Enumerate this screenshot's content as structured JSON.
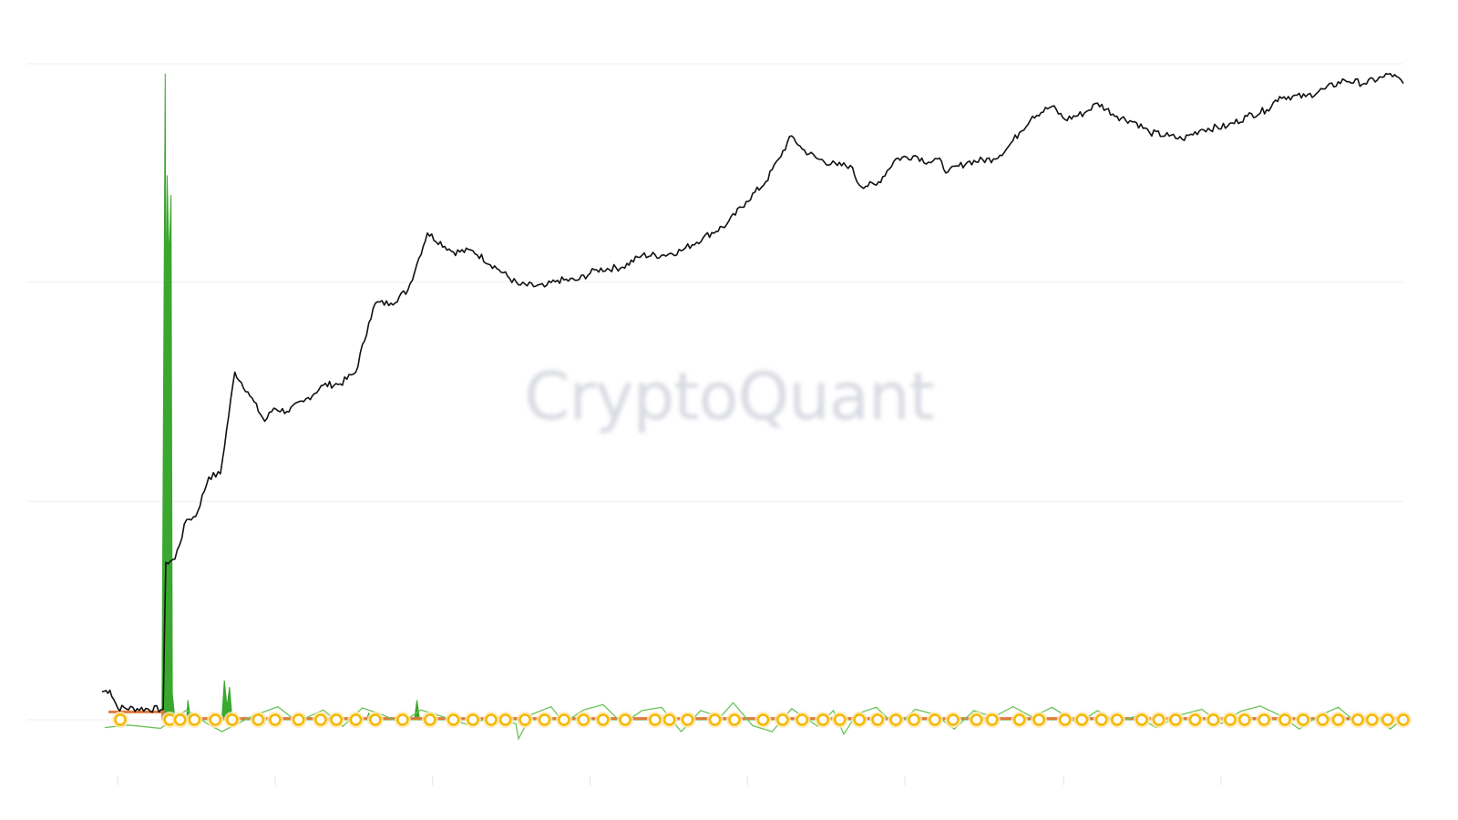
{
  "watermark": "CryptoQuant",
  "colors": {
    "background": "#ffffff",
    "gridline": "#efefef",
    "axis_tick": "#e4e4e4",
    "price_line": "#111111",
    "green_series": "#3aa72e",
    "green_line": "#6cc35a",
    "orange_series": "#e07a3a",
    "marker_ring": "#f5b800",
    "marker_fill": "#ffffff",
    "marker_halo": "#ffe9b3",
    "watermark": "#d9dbe3"
  },
  "chart_data": {
    "type": "line",
    "title": "",
    "xlabel": "",
    "ylabel": "",
    "x_range": [
      0,
      100
    ],
    "y_range": [
      0,
      100
    ],
    "y_gridlines": [
      0,
      33.3,
      66.7,
      100
    ],
    "x_ticks": [
      1.2,
      13.3,
      25.4,
      37.5,
      49.6,
      61.7,
      73.9,
      86.0
    ],
    "show_tick_labels": false,
    "legend": "none",
    "series": [
      {
        "key": "price",
        "style": "line",
        "color": "#111111",
        "points": [
          [
            0,
            4.3
          ],
          [
            0.6,
            4.5
          ],
          [
            1.2,
            1.8
          ],
          [
            4.7,
            1.6
          ],
          [
            4.9,
            24.0
          ],
          [
            5.6,
            24.5
          ],
          [
            6.5,
            30.5
          ],
          [
            7.2,
            31.0
          ],
          [
            8.2,
            37.0
          ],
          [
            9.1,
            37.5
          ],
          [
            10.2,
            53.0
          ],
          [
            11.2,
            50.0
          ],
          [
            12.5,
            45.5
          ],
          [
            13.2,
            47.5
          ],
          [
            14.2,
            47.0
          ],
          [
            15.5,
            48.5
          ],
          [
            17.0,
            51.0
          ],
          [
            18.3,
            51.2
          ],
          [
            19.5,
            53.0
          ],
          [
            20.5,
            60.5
          ],
          [
            21.0,
            63.5
          ],
          [
            22.2,
            63.5
          ],
          [
            23.5,
            65.5
          ],
          [
            24.2,
            69.5
          ],
          [
            25.0,
            74.2
          ],
          [
            27.0,
            71.3
          ],
          [
            28.5,
            71.5
          ],
          [
            30.5,
            68.6
          ],
          [
            32.0,
            66.3
          ],
          [
            34.0,
            66.0
          ],
          [
            35.0,
            67.0
          ],
          [
            36.5,
            67.0
          ],
          [
            38.0,
            68.6
          ],
          [
            40.0,
            69.0
          ],
          [
            41.5,
            70.8
          ],
          [
            43.0,
            70.8
          ],
          [
            44.5,
            71.5
          ],
          [
            46.2,
            73.5
          ],
          [
            48.0,
            75.5
          ],
          [
            49.5,
            79.0
          ],
          [
            51.0,
            82.0
          ],
          [
            52.0,
            85.5
          ],
          [
            53.0,
            89.0
          ],
          [
            53.8,
            87.0
          ],
          [
            55.0,
            85.5
          ],
          [
            56.5,
            84.5
          ],
          [
            57.5,
            84.5
          ],
          [
            58.2,
            81.5
          ],
          [
            59.5,
            81.5
          ],
          [
            61.0,
            85.5
          ],
          [
            62.5,
            86.0
          ],
          [
            63.5,
            85.0
          ],
          [
            64.2,
            85.5
          ],
          [
            65.0,
            83.5
          ],
          [
            66.5,
            85.0
          ],
          [
            68.5,
            85.5
          ],
          [
            69.5,
            87.0
          ],
          [
            70.5,
            89.5
          ],
          [
            71.5,
            92.0
          ],
          [
            73.0,
            93.5
          ],
          [
            74.0,
            91.5
          ],
          [
            75.5,
            92.5
          ],
          [
            76.5,
            94.0
          ],
          [
            78.0,
            92.0
          ],
          [
            79.5,
            91.0
          ],
          [
            80.5,
            89.5
          ],
          [
            82.0,
            89.0
          ],
          [
            83.0,
            88.5
          ],
          [
            84.5,
            90.0
          ],
          [
            86.5,
            90.5
          ],
          [
            88.0,
            92.0
          ],
          [
            89.5,
            93.0
          ],
          [
            90.5,
            95.0
          ],
          [
            92.5,
            95.0
          ],
          [
            94.0,
            96.2
          ],
          [
            95.5,
            97.5
          ],
          [
            97.0,
            97.0
          ],
          [
            98.5,
            98.0
          ],
          [
            99.0,
            98.5
          ],
          [
            100.0,
            97.0
          ]
        ]
      },
      {
        "key": "green_spike",
        "style": "area",
        "color": "#3aa72e",
        "points": [
          [
            4.6,
            0
          ],
          [
            4.7,
            40
          ],
          [
            4.85,
            98.5
          ],
          [
            4.9,
            60
          ],
          [
            5.0,
            83
          ],
          [
            5.15,
            70
          ],
          [
            5.3,
            80
          ],
          [
            5.4,
            4
          ],
          [
            5.6,
            0
          ],
          [
            6.5,
            0
          ],
          [
            6.6,
            3
          ],
          [
            6.8,
            0
          ],
          [
            9.2,
            0
          ],
          [
            9.4,
            6
          ],
          [
            9.6,
            2
          ],
          [
            9.8,
            5
          ],
          [
            10.0,
            0
          ],
          [
            20.3,
            0
          ],
          [
            20.5,
            1
          ],
          [
            20.7,
            0
          ],
          [
            24.0,
            0
          ],
          [
            24.2,
            3
          ],
          [
            24.4,
            0
          ],
          [
            100,
            0
          ]
        ]
      },
      {
        "key": "orange_band",
        "style": "line",
        "color": "#e07a3a",
        "points": [
          [
            0.5,
            1.2
          ],
          [
            4.7,
            1.2
          ],
          [
            4.7,
            0.2
          ],
          [
            100,
            0.2
          ]
        ]
      },
      {
        "key": "green_oscillator",
        "style": "line",
        "color": "#6cc35a",
        "points": [
          [
            0.2,
            -1.2
          ],
          [
            2.0,
            -0.8
          ],
          [
            4.5,
            -1.3
          ],
          [
            6.5,
            1.5
          ],
          [
            8.0,
            -0.5
          ],
          [
            9.2,
            -1.8
          ],
          [
            11.5,
            0.5
          ],
          [
            13.5,
            2.0
          ],
          [
            15.0,
            -0.3
          ],
          [
            17.0,
            1.5
          ],
          [
            18.5,
            -1.0
          ],
          [
            20.0,
            1.8
          ],
          [
            21.5,
            0.8
          ],
          [
            23.0,
            -0.5
          ],
          [
            24.5,
            1.5
          ],
          [
            26.0,
            0.6
          ],
          [
            28.0,
            -0.7
          ],
          [
            30.0,
            0.3
          ],
          [
            31.8,
            -0.6
          ],
          [
            32.0,
            -2.9
          ],
          [
            33.0,
            0.8
          ],
          [
            34.5,
            2.0
          ],
          [
            35.5,
            -0.5
          ],
          [
            37.0,
            1.5
          ],
          [
            38.5,
            2.3
          ],
          [
            40.0,
            -0.6
          ],
          [
            41.5,
            1.4
          ],
          [
            43.0,
            1.9
          ],
          [
            44.5,
            -1.8
          ],
          [
            46.0,
            1.4
          ],
          [
            47.5,
            0.4
          ],
          [
            48.5,
            2.6
          ],
          [
            50.0,
            -0.9
          ],
          [
            51.5,
            -1.8
          ],
          [
            53.0,
            1.7
          ],
          [
            55.0,
            -1.0
          ],
          [
            56.2,
            1.4
          ],
          [
            57.0,
            -2.2
          ],
          [
            58.0,
            0.9
          ],
          [
            59.5,
            1.9
          ],
          [
            61.0,
            -1.0
          ],
          [
            62.5,
            1.6
          ],
          [
            64.0,
            0.8
          ],
          [
            65.5,
            -1.4
          ],
          [
            67.0,
            1.4
          ],
          [
            68.5,
            0.4
          ],
          [
            70.0,
            2.0
          ],
          [
            71.5,
            0.4
          ],
          [
            73.0,
            1.9
          ],
          [
            75.0,
            -0.6
          ],
          [
            76.5,
            1.4
          ],
          [
            78.0,
            -0.4
          ],
          [
            79.5,
            0.6
          ],
          [
            81.0,
            -1.2
          ],
          [
            83.0,
            0.8
          ],
          [
            84.5,
            1.6
          ],
          [
            86.0,
            -0.6
          ],
          [
            87.5,
            1.3
          ],
          [
            89.0,
            2.1
          ],
          [
            90.5,
            0.7
          ],
          [
            92.0,
            -1.4
          ],
          [
            93.5,
            0.6
          ],
          [
            95.0,
            1.9
          ],
          [
            96.5,
            -0.6
          ],
          [
            98.0,
            0.3
          ],
          [
            99.0,
            -1.4
          ],
          [
            100.0,
            0.2
          ]
        ]
      },
      {
        "key": "signal_markers",
        "style": "markers",
        "color": "#f5b800",
        "x": [
          1.4,
          5.2,
          6.0,
          7.1,
          8.7,
          10.0,
          12.0,
          13.3,
          15.1,
          16.8,
          18.0,
          19.5,
          21.0,
          23.1,
          25.2,
          27.0,
          28.5,
          29.9,
          31.0,
          32.5,
          34.0,
          35.5,
          37.0,
          38.5,
          40.2,
          42.5,
          43.6,
          45.0,
          47.1,
          48.6,
          50.8,
          52.3,
          53.8,
          55.4,
          56.7,
          58.2,
          59.6,
          61.0,
          62.4,
          64.0,
          65.4,
          67.2,
          68.4,
          70.5,
          72.0,
          74.0,
          75.3,
          76.8,
          78.0,
          79.9,
          81.2,
          82.5,
          84.0,
          85.4,
          86.7,
          87.8,
          89.3,
          90.9,
          92.3,
          93.8,
          95.0,
          96.5,
          97.6,
          98.8,
          100.0
        ]
      }
    ]
  }
}
